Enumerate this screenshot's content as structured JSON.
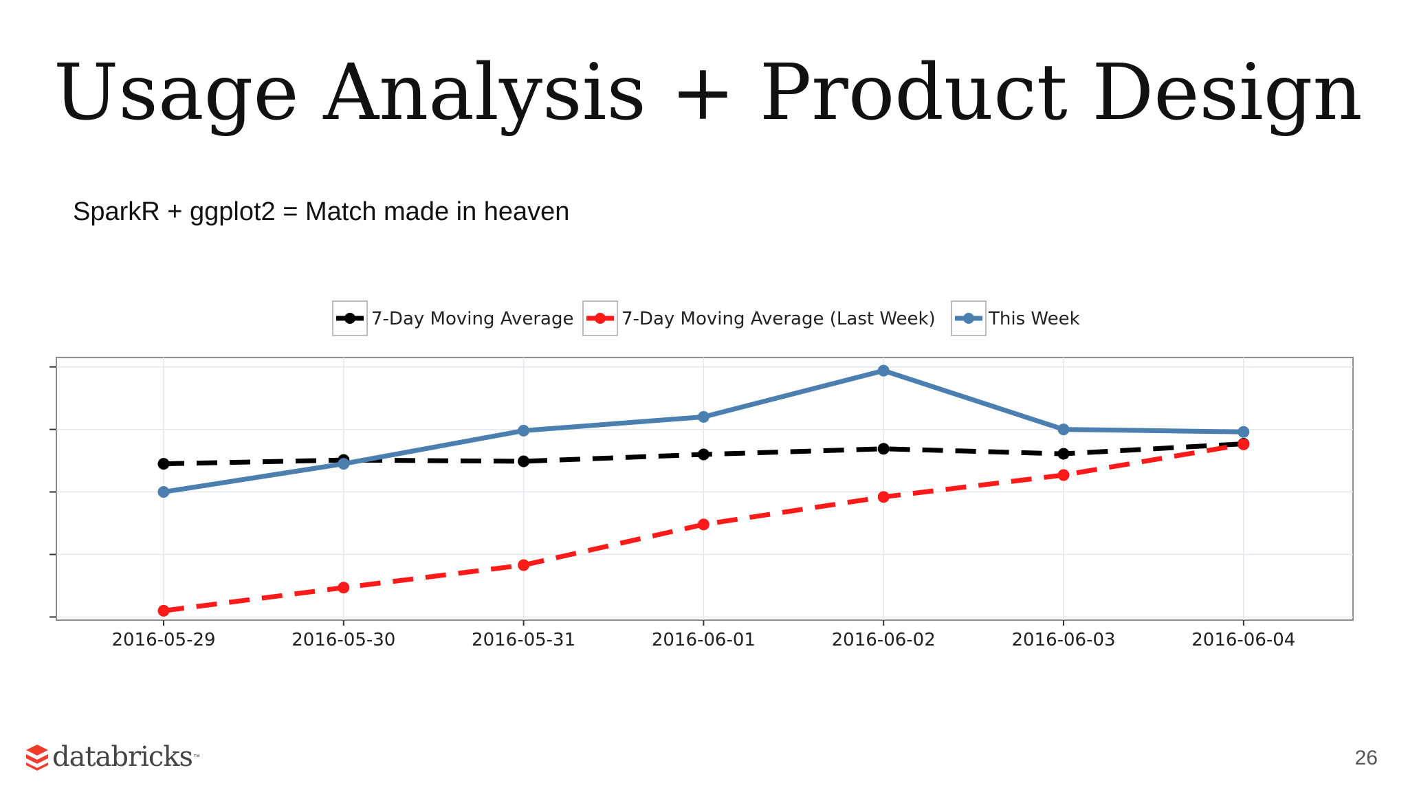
{
  "slide": {
    "title": "Usage Analysis + Product Design",
    "subtitle": "SparkR + ggplot2 = Match made in heaven",
    "page_number": "26",
    "logo_text": "databricks",
    "logo_tm": "™",
    "logo_icon": "databricks-stack-icon",
    "logo_color": "#ee3d2c"
  },
  "chart_data": {
    "type": "line",
    "categories": [
      "2016-05-29",
      "2016-05-30",
      "2016-05-31",
      "2016-06-01",
      "2016-06-02",
      "2016-06-03",
      "2016-06-04"
    ],
    "series": [
      {
        "name": "7-Day Moving Average",
        "color": "#000000",
        "line_style": "dashed",
        "values": [
          5.45,
          5.51,
          5.49,
          5.6,
          5.69,
          5.61,
          5.77
        ]
      },
      {
        "name": "7-Day Moving Average (Last Week)",
        "color": "#ff1a1a",
        "line_style": "dashed",
        "values": [
          3.1,
          3.47,
          3.83,
          4.48,
          4.92,
          5.27,
          5.76
        ]
      },
      {
        "name": "This Week",
        "color": "#4a7fb0",
        "line_style": "solid",
        "values": [
          5.0,
          5.45,
          5.98,
          6.2,
          6.94,
          6.0,
          5.96
        ]
      }
    ],
    "ylim": [
      2.95,
      7.15
    ],
    "y_ticks": [
      3,
      4,
      5,
      6,
      7
    ],
    "y_tick_labels_visible": false,
    "grid": true,
    "legend_position": "top"
  }
}
